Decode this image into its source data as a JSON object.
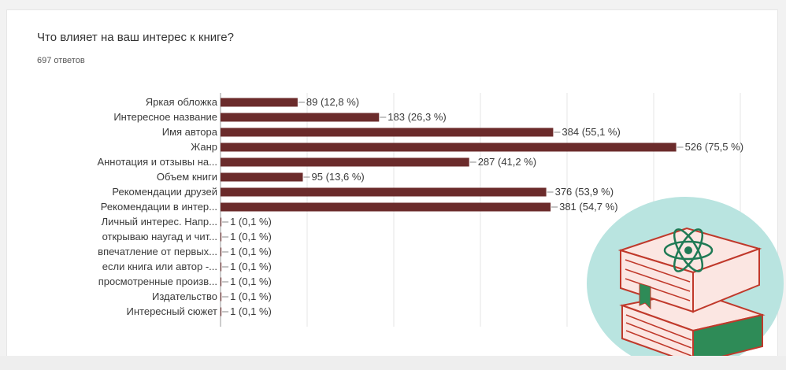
{
  "card": {
    "title": "Что влияет на ваш интерес к книге?",
    "subtitle": "697 ответов"
  },
  "chart_data": {
    "type": "bar",
    "orientation": "horizontal",
    "grid": true,
    "bar_color": "#6b2b2b",
    "xlim": [
      0,
      600
    ],
    "categories": [
      "Яркая обложка",
      "Интересное название",
      "Имя автора",
      "Жанр",
      "Аннотация и отзывы на...",
      "Объем книги",
      "Рекомендации друзей",
      "Рекомендации в интер...",
      "Личный интерес. Напр...",
      "открываю наугад и чит...",
      "впечатление от первых...",
      "если книга или автор -...",
      "просмотренные произв...",
      "Издательство",
      "Интересный сюжет"
    ],
    "values": [
      89,
      183,
      384,
      526,
      287,
      95,
      376,
      381,
      1,
      1,
      1,
      1,
      1,
      1,
      1
    ],
    "value_labels": [
      "89 (12,8 %)",
      "183 (26,3 %)",
      "384 (55,1 %)",
      "526 (75,5 %)",
      "287 (41,2 %)",
      "95 (13,6 %)",
      "376 (53,9 %)",
      "381 (54,7 %)",
      "1 (0,1 %)",
      "1 (0,1 %)",
      "1 (0,1 %)",
      "1 (0,1 %)",
      "1 (0,1 %)",
      "1 (0,1 %)",
      "1 (0,1 %)"
    ]
  },
  "illustration": {
    "icon": "atom-book-stack-icon",
    "circle_color": "#b9e4e0",
    "book_cover_color": "#fbe6e2",
    "book_outline_color": "#c0392b",
    "book_spine_color": "#2e8b57"
  }
}
